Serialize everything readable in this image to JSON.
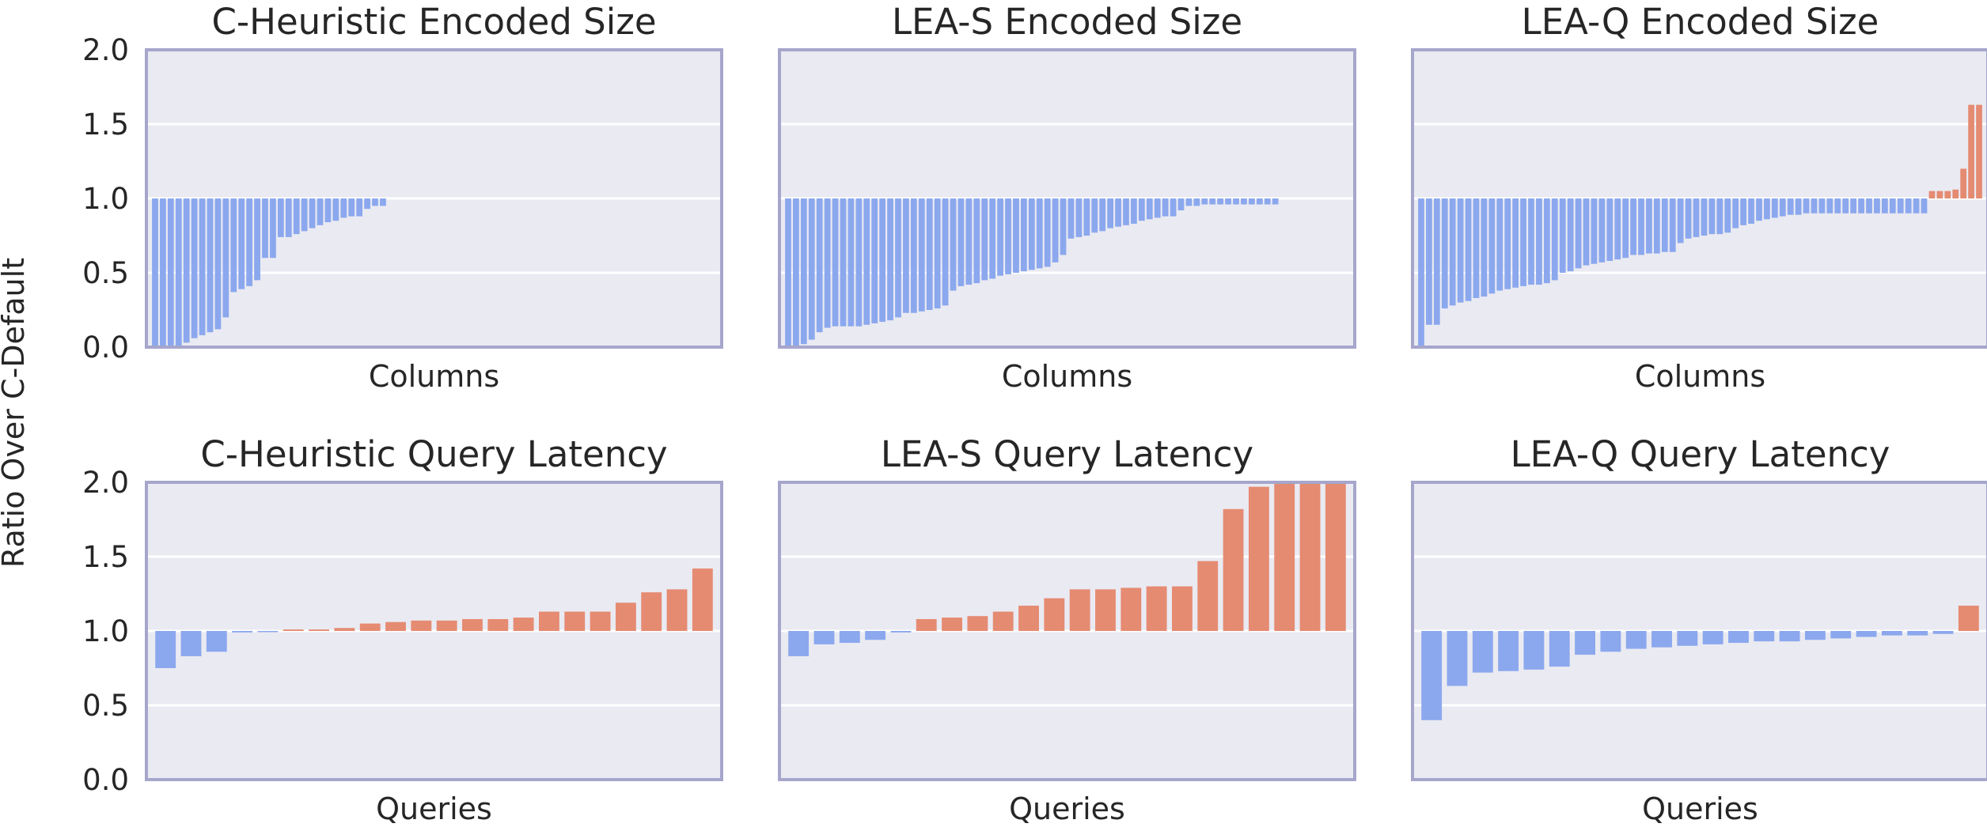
{
  "figure": {
    "ylabel": "Ratio Over C-Default",
    "colors": {
      "below_one": "#8ba8ee",
      "above_one": "#e58b72",
      "background": "#eaeaf2",
      "border": "#a6a6cc",
      "grid": "#ffffff"
    }
  },
  "chart_data": [
    {
      "type": "bar",
      "title": "C-Heuristic Encoded Size",
      "xlabel": "Columns",
      "ylim": [
        0,
        2
      ],
      "yticks": [
        "0.0",
        "0.5",
        "1.0",
        "1.5",
        "2.0"
      ],
      "baseline": 1.0,
      "slots": 72,
      "values": [
        0.0,
        0.0,
        0.0,
        0.0,
        0.03,
        0.06,
        0.08,
        0.1,
        0.12,
        0.2,
        0.37,
        0.39,
        0.41,
        0.45,
        0.6,
        0.6,
        0.74,
        0.74,
        0.76,
        0.78,
        0.8,
        0.82,
        0.84,
        0.85,
        0.87,
        0.88,
        0.88,
        0.93,
        0.95,
        0.95
      ]
    },
    {
      "type": "bar",
      "title": "LEA-S Encoded Size",
      "xlabel": "Columns",
      "ylim": [
        0,
        2
      ],
      "yticks": [
        "0.0",
        "0.5",
        "1.0",
        "1.5",
        "2.0"
      ],
      "baseline": 1.0,
      "slots": 72,
      "values": [
        0.0,
        0.0,
        0.02,
        0.05,
        0.1,
        0.13,
        0.14,
        0.14,
        0.14,
        0.14,
        0.15,
        0.16,
        0.17,
        0.18,
        0.2,
        0.23,
        0.23,
        0.24,
        0.25,
        0.26,
        0.28,
        0.38,
        0.41,
        0.42,
        0.43,
        0.45,
        0.46,
        0.48,
        0.49,
        0.5,
        0.51,
        0.52,
        0.53,
        0.54,
        0.57,
        0.62,
        0.73,
        0.74,
        0.75,
        0.77,
        0.78,
        0.8,
        0.81,
        0.82,
        0.83,
        0.85,
        0.86,
        0.87,
        0.88,
        0.88,
        0.92,
        0.95,
        0.95,
        0.96,
        0.96,
        0.96,
        0.96,
        0.96,
        0.96,
        0.96,
        0.96,
        0.96,
        0.96
      ]
    },
    {
      "type": "bar",
      "title": "LEA-Q Encoded Size",
      "xlabel": "Columns",
      "ylim": [
        0,
        2
      ],
      "yticks": [
        "0.0",
        "0.5",
        "1.0",
        "1.5",
        "2.0"
      ],
      "baseline": 1.0,
      "slots": 72,
      "values": [
        0.0,
        0.15,
        0.15,
        0.26,
        0.28,
        0.3,
        0.31,
        0.33,
        0.34,
        0.36,
        0.38,
        0.39,
        0.4,
        0.41,
        0.42,
        0.42,
        0.43,
        0.45,
        0.5,
        0.51,
        0.53,
        0.55,
        0.56,
        0.57,
        0.58,
        0.59,
        0.6,
        0.62,
        0.62,
        0.63,
        0.63,
        0.64,
        0.64,
        0.7,
        0.73,
        0.74,
        0.75,
        0.76,
        0.76,
        0.77,
        0.8,
        0.82,
        0.83,
        0.85,
        0.86,
        0.87,
        0.88,
        0.89,
        0.89,
        0.9,
        0.9,
        0.9,
        0.9,
        0.9,
        0.9,
        0.9,
        0.9,
        0.9,
        0.9,
        0.9,
        0.9,
        0.9,
        0.9,
        0.9,
        0.9,
        1.05,
        1.05,
        1.05,
        1.06,
        1.2,
        1.63,
        1.63
      ]
    },
    {
      "type": "bar",
      "title": "C-Heuristic Query Latency",
      "xlabel": "Queries",
      "ylim": [
        0,
        2
      ],
      "yticks": [
        "0.0",
        "0.5",
        "1.0",
        "1.5",
        "2.0"
      ],
      "baseline": 1.0,
      "values": [
        0.75,
        0.83,
        0.86,
        0.99,
        1.0,
        1.01,
        1.01,
        1.02,
        1.05,
        1.06,
        1.07,
        1.07,
        1.08,
        1.08,
        1.09,
        1.13,
        1.13,
        1.13,
        1.19,
        1.26,
        1.28,
        1.42
      ]
    },
    {
      "type": "bar",
      "title": "LEA-S Query Latency",
      "xlabel": "Queries",
      "ylim": [
        0,
        2
      ],
      "yticks": [
        "0.0",
        "0.5",
        "1.0",
        "1.5",
        "2.0"
      ],
      "baseline": 1.0,
      "values": [
        0.83,
        0.91,
        0.92,
        0.94,
        0.99,
        1.08,
        1.09,
        1.1,
        1.13,
        1.17,
        1.22,
        1.28,
        1.28,
        1.29,
        1.3,
        1.3,
        1.47,
        1.82,
        1.97,
        2.0,
        2.0,
        2.0
      ]
    },
    {
      "type": "bar",
      "title": "LEA-Q Query Latency",
      "xlabel": "Queries",
      "ylim": [
        0,
        2
      ],
      "yticks": [
        "0.0",
        "0.5",
        "1.0",
        "1.5",
        "2.0"
      ],
      "baseline": 1.0,
      "values": [
        0.4,
        0.63,
        0.72,
        0.73,
        0.74,
        0.76,
        0.84,
        0.86,
        0.88,
        0.89,
        0.9,
        0.91,
        0.92,
        0.93,
        0.93,
        0.94,
        0.95,
        0.96,
        0.97,
        0.97,
        0.98,
        1.17
      ]
    }
  ]
}
